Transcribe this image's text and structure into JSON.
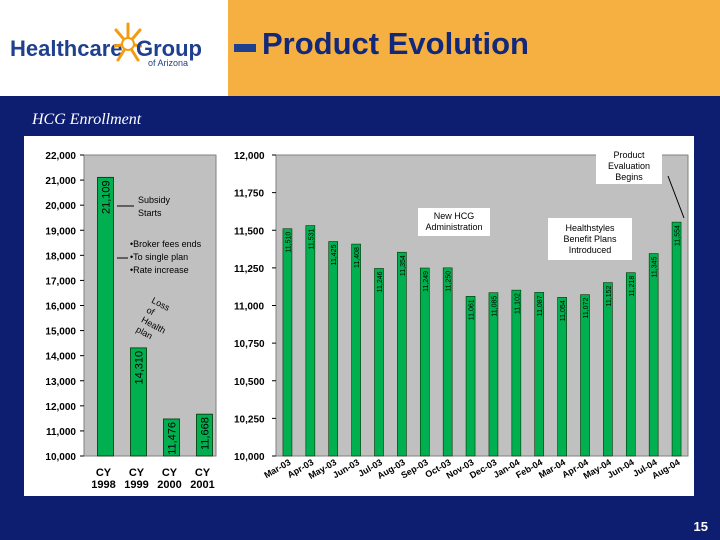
{
  "header": {
    "logo_main": "Healthcare",
    "logo_group": "Group",
    "logo_sub": "of Arizona",
    "title": "Product Evolution"
  },
  "subtitle": "HCG Enrollment",
  "page_number": "15",
  "colors": {
    "header_orange": "#f5b041",
    "band_navy": "#0d1d6f",
    "plot_bg": "#c0c0c0",
    "bar_green": "#00b050",
    "logo_blue": "#1f3f8f"
  },
  "chart_data": [
    {
      "type": "bar",
      "title": "",
      "categories": [
        "CY 1998",
        "CY 1999",
        "CY 2000",
        "CY 2001"
      ],
      "category_lines": [
        [
          "CY",
          "1998"
        ],
        [
          "CY",
          "1999"
        ],
        [
          "CY",
          "2000"
        ],
        [
          "CY",
          "2001"
        ]
      ],
      "values": [
        21109,
        14310,
        11476,
        11668
      ],
      "value_labels": [
        "21,109",
        "14,310",
        "11,476",
        "11,668"
      ],
      "ylim": [
        10000,
        22000
      ],
      "yticks": [
        10000,
        11000,
        12000,
        13000,
        14000,
        15000,
        16000,
        17000,
        18000,
        19000,
        20000,
        21000,
        22000
      ],
      "ytick_labels": [
        "10,000",
        "11,000",
        "12,000",
        "13,000",
        "14,000",
        "15,000",
        "16,000",
        "17,000",
        "18,000",
        "19,000",
        "20,000",
        "21,000",
        "22,000"
      ],
      "annotations": {
        "subsidy": "Subsidy Starts",
        "bullets": [
          "•Broker fees ends",
          "•To single plan",
          "•Rate increase"
        ],
        "loss": "Loss of Health plan"
      }
    },
    {
      "type": "bar",
      "title": "",
      "categories": [
        "Mar-03",
        "Apr-03",
        "May-03",
        "Jun-03",
        "Jul-03",
        "Aug-03",
        "Sep-03",
        "Oct-03",
        "Nov-03",
        "Dec-03",
        "Jan-04",
        "Feb-04",
        "Mar-04",
        "Apr-04",
        "May-04",
        "Jun-04",
        "Jul-04",
        "Aug-04"
      ],
      "values": [
        11510,
        11531,
        11425,
        11408,
        11246,
        11354,
        11249,
        11250,
        11061,
        11085,
        11102,
        11087,
        11054,
        11072,
        11152,
        11218,
        11345,
        11554
      ],
      "value_labels": [
        "11,510",
        "11,531",
        "11,425",
        "11,408",
        "11,246",
        "11,354",
        "11,249",
        "11,250",
        "11,061",
        "11,085",
        "11,102",
        "11,087",
        "11,054",
        "11,072",
        "11,152",
        "11,218",
        "11,345",
        "11,554"
      ],
      "ylim": [
        10000,
        12000
      ],
      "yticks": [
        10000,
        10250,
        10500,
        10750,
        11000,
        11250,
        11500,
        11750,
        12000
      ],
      "ytick_labels": [
        "10,000",
        "10,250",
        "10,500",
        "10,750",
        "11,000",
        "11,250",
        "11,500",
        "11,750",
        "12,000"
      ],
      "annotations": {
        "product": "Product Evaluation Begins",
        "new_admin": "New HCG Administration",
        "healthstyles": "Healthstyles Benefit Plans Introduced"
      }
    }
  ]
}
